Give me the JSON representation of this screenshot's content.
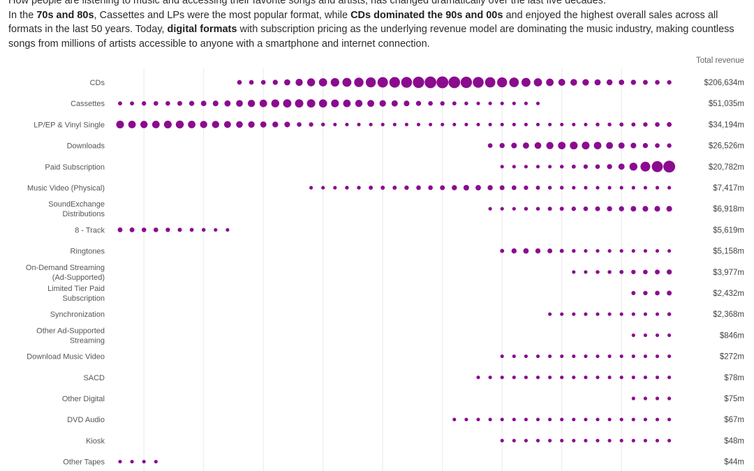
{
  "intro": {
    "line0": "How people are listening to music and accessing their favorite songs and artists, has changed dramatically over the last five decades.",
    "p1_t1": "In the ",
    "p1_b1": "70s and 80s",
    "p1_t2": ", Cassettes and LPs",
    "p1_t3": " were the most popular format, while ",
    "p1_b2": "CDs dominated the 90s and 00s",
    "p1_t4": " and enjoyed the highest overall sales across all formats in the last 50 years. Today, ",
    "p1_b3": "digital formats",
    "p1_t5": " with subscription pricing as the underlying revenue model are dominating the music industry, making countless songs from millions of artists accessible to anyone with a smartphone and internet connection."
  },
  "column_header": "Total revenue",
  "colors": {
    "dot": "#8b0b8f",
    "grid": "#e9e9e9"
  },
  "chart_data": {
    "type": "scatter",
    "encoding": "dot size = annual revenue by format and year",
    "xlim": [
      1973,
      2019
    ],
    "grid": true,
    "rows": [
      {
        "label": [
          "CDs"
        ],
        "total": "$206,634m",
        "start": 1983,
        "levels": [
          0.3,
          0.3,
          0.3,
          0.35,
          0.45,
          0.55,
          0.62,
          0.65,
          0.68,
          0.72,
          0.76,
          0.82,
          0.86,
          0.88,
          0.9,
          0.95,
          0.98,
          1.0,
          0.98,
          0.95,
          0.9,
          0.85,
          0.82,
          0.78,
          0.72,
          0.65,
          0.58,
          0.52,
          0.5,
          0.48,
          0.45,
          0.42,
          0.38,
          0.35,
          0.32,
          0.3,
          0.28
        ]
      },
      {
        "label": [
          "Cassettes"
        ],
        "total": "$51,035m",
        "start": 1973,
        "levels": [
          0.25,
          0.25,
          0.28,
          0.3,
          0.3,
          0.32,
          0.35,
          0.38,
          0.4,
          0.45,
          0.5,
          0.55,
          0.58,
          0.62,
          0.65,
          0.66,
          0.66,
          0.64,
          0.6,
          0.58,
          0.55,
          0.52,
          0.48,
          0.45,
          0.4,
          0.35,
          0.3,
          0.28,
          0.25,
          0.22,
          0.2,
          0.2,
          0.2,
          0.2,
          0.2,
          0.2
        ]
      },
      {
        "label": [
          "LP/EP & Vinyl Single"
        ],
        "total": "$34,194m",
        "start": 1973,
        "levels": [
          0.6,
          0.58,
          0.56,
          0.58,
          0.6,
          0.62,
          0.58,
          0.55,
          0.55,
          0.52,
          0.5,
          0.48,
          0.45,
          0.42,
          0.4,
          0.3,
          0.28,
          0.22,
          0.2,
          0.2,
          0.2,
          0.2,
          0.2,
          0.2,
          0.2,
          0.2,
          0.2,
          0.2,
          0.2,
          0.2,
          0.2,
          0.2,
          0.2,
          0.2,
          0.2,
          0.2,
          0.2,
          0.2,
          0.2,
          0.2,
          0.22,
          0.22,
          0.25,
          0.25,
          0.28,
          0.3,
          0.32
        ]
      },
      {
        "label": [
          "Downloads"
        ],
        "total": "$26,526m",
        "start": 2004,
        "levels": [
          0.3,
          0.35,
          0.4,
          0.45,
          0.5,
          0.55,
          0.58,
          0.6,
          0.6,
          0.58,
          0.52,
          0.45,
          0.4,
          0.35,
          0.3,
          0.28
        ]
      },
      {
        "label": [
          "Paid Subscription"
        ],
        "total": "$20,782m",
        "start": 2005,
        "levels": [
          0.2,
          0.2,
          0.2,
          0.2,
          0.2,
          0.22,
          0.25,
          0.28,
          0.3,
          0.35,
          0.45,
          0.62,
          0.8,
          0.92,
          1.0
        ]
      },
      {
        "label": [
          "Music Video (Physical)"
        ],
        "total": "$7,417m",
        "start": 1989,
        "levels": [
          0.2,
          0.2,
          0.2,
          0.22,
          0.22,
          0.25,
          0.25,
          0.25,
          0.28,
          0.3,
          0.3,
          0.32,
          0.35,
          0.4,
          0.38,
          0.35,
          0.32,
          0.3,
          0.28,
          0.25,
          0.22,
          0.22,
          0.2,
          0.2,
          0.2,
          0.2,
          0.2,
          0.2,
          0.2,
          0.2,
          0.2
        ]
      },
      {
        "label": [
          "SoundExchange",
          "Distributions"
        ],
        "total": "$6,918m",
        "start": 2004,
        "levels": [
          0.2,
          0.2,
          0.2,
          0.22,
          0.22,
          0.25,
          0.25,
          0.28,
          0.3,
          0.32,
          0.35,
          0.35,
          0.38,
          0.4,
          0.4,
          0.4
        ]
      },
      {
        "label": [
          "8 - Track"
        ],
        "total": "$5,619m",
        "start": 1973,
        "levels": [
          0.32,
          0.32,
          0.3,
          0.3,
          0.28,
          0.26,
          0.24,
          0.22,
          0.2,
          0.2
        ]
      },
      {
        "label": [
          "Ringtones"
        ],
        "total": "$5,158m",
        "start": 2005,
        "levels": [
          0.25,
          0.35,
          0.38,
          0.35,
          0.32,
          0.25,
          0.22,
          0.2,
          0.2,
          0.2,
          0.2,
          0.2,
          0.2,
          0.2,
          0.2
        ]
      },
      {
        "label": [
          "On-Demand Streaming",
          "(Ad-Supported)"
        ],
        "total": "$3,977m",
        "start": 2011,
        "levels": [
          0.2,
          0.2,
          0.22,
          0.22,
          0.25,
          0.28,
          0.3,
          0.32,
          0.35
        ]
      },
      {
        "label": [
          "Limited Tier Paid",
          "Subscription"
        ],
        "total": "$2,432m",
        "start": 2016,
        "levels": [
          0.25,
          0.28,
          0.3,
          0.32
        ]
      },
      {
        "label": [
          "Synchronization"
        ],
        "total": "$2,368m",
        "start": 2009,
        "levels": [
          0.2,
          0.2,
          0.2,
          0.2,
          0.2,
          0.2,
          0.2,
          0.2,
          0.2,
          0.2,
          0.22
        ]
      },
      {
        "label": [
          "Other Ad-Supported",
          "Streaming"
        ],
        "total": "$846m",
        "start": 2016,
        "levels": [
          0.2,
          0.2,
          0.2,
          0.2
        ]
      },
      {
        "label": [
          "Download Music Video"
        ],
        "total": "$272m",
        "start": 2005,
        "levels": [
          0.2,
          0.2,
          0.2,
          0.2,
          0.2,
          0.2,
          0.2,
          0.2,
          0.2,
          0.2,
          0.2,
          0.2,
          0.2,
          0.2,
          0.2
        ]
      },
      {
        "label": [
          "SACD"
        ],
        "total": "$78m",
        "start": 2003,
        "levels": [
          0.2,
          0.2,
          0.2,
          0.2,
          0.2,
          0.2,
          0.2,
          0.2,
          0.2,
          0.2,
          0.2,
          0.2,
          0.2,
          0.2,
          0.2,
          0.2,
          0.2
        ]
      },
      {
        "label": [
          "Other Digital"
        ],
        "total": "$75m",
        "start": 2016,
        "levels": [
          0.2,
          0.2,
          0.2,
          0.2
        ]
      },
      {
        "label": [
          "DVD Audio"
        ],
        "total": "$67m",
        "start": 2001,
        "levels": [
          0.2,
          0.2,
          0.2,
          0.2,
          0.2,
          0.2,
          0.2,
          0.2,
          0.2,
          0.2,
          0.2,
          0.2,
          0.2,
          0.2,
          0.2,
          0.2,
          0.2,
          0.2,
          0.2
        ]
      },
      {
        "label": [
          "Kiosk"
        ],
        "total": "$48m",
        "start": 2005,
        "levels": [
          0.2,
          0.2,
          0.2,
          0.2,
          0.2,
          0.2,
          0.2,
          0.2,
          0.2,
          0.2,
          0.2,
          0.2,
          0.2,
          0.2,
          0.2
        ]
      },
      {
        "label": [
          "Other Tapes"
        ],
        "total": "$44m",
        "start": 1973,
        "levels": [
          0.2,
          0.2,
          0.2,
          0.2
        ]
      }
    ]
  }
}
